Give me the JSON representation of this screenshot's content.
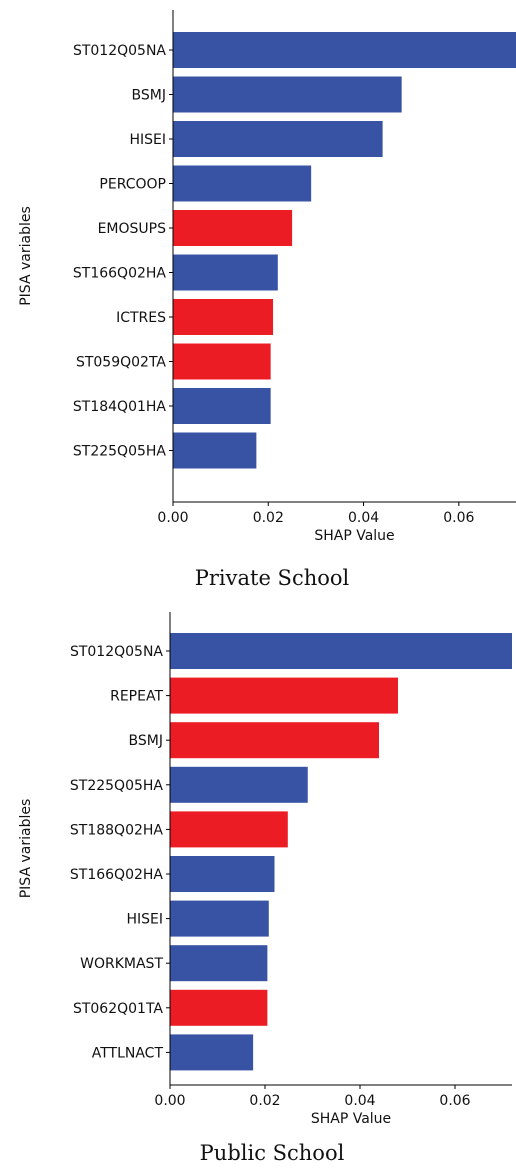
{
  "colors": {
    "positive": "#3953a4",
    "negative": "#ec1c24"
  },
  "chart_data": [
    {
      "type": "bar",
      "orientation": "horizontal",
      "caption": "Private School",
      "xlabel": "SHAP Value",
      "ylabel": "PISA variables",
      "xlim": [
        0,
        0.072
      ],
      "xticks": [
        "0.00",
        "0.02",
        "0.04",
        "0.06"
      ],
      "xtick_values": [
        0,
        0.02,
        0.04,
        0.06
      ],
      "categories": [
        "ST012Q05NA",
        "BSMJ",
        "HISEI",
        "PERCOOP",
        "EMOSUPS",
        "ST166Q02HA",
        "ICTRES",
        "ST059Q02TA",
        "ST184Q01HA",
        "ST225Q05HA"
      ],
      "values": [
        0.072,
        0.048,
        0.044,
        0.029,
        0.025,
        0.022,
        0.021,
        0.0205,
        0.0205,
        0.0175
      ],
      "bar_colors": [
        "positive",
        "positive",
        "positive",
        "positive",
        "negative",
        "positive",
        "negative",
        "negative",
        "positive",
        "positive"
      ]
    },
    {
      "type": "bar",
      "orientation": "horizontal",
      "caption": "Public School",
      "xlabel": "SHAP Value",
      "ylabel": "PISA variables",
      "xlim": [
        0,
        0.072
      ],
      "xticks": [
        "0.00",
        "0.02",
        "0.04",
        "0.06"
      ],
      "xtick_values": [
        0,
        0.02,
        0.04,
        0.06
      ],
      "categories": [
        "ST012Q05NA",
        "REPEAT",
        "BSMJ",
        "ST225Q05HA",
        "ST188Q02HA",
        "ST166Q02HA",
        "HISEI",
        "WORKMAST",
        "ST062Q01TA",
        "ATTLNACT"
      ],
      "values": [
        0.072,
        0.048,
        0.044,
        0.029,
        0.0248,
        0.022,
        0.0208,
        0.0205,
        0.0205,
        0.0175
      ],
      "bar_colors": [
        "positive",
        "negative",
        "negative",
        "positive",
        "negative",
        "positive",
        "positive",
        "positive",
        "negative",
        "positive"
      ]
    }
  ]
}
